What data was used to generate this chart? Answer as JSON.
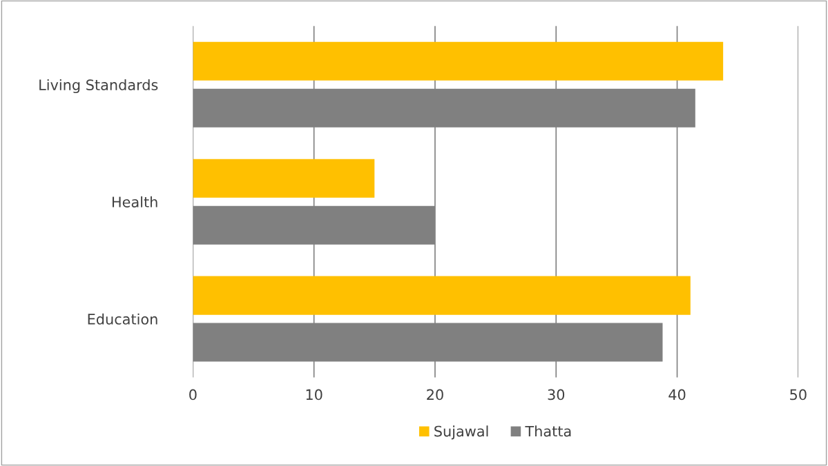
{
  "chart_data": {
    "type": "bar",
    "orientation": "horizontal",
    "categories": [
      "Living Standards",
      "Health",
      "Education"
    ],
    "series": [
      {
        "name": "Sujawal",
        "color": "#ffc000",
        "values": [
          43.8,
          15,
          41.1
        ]
      },
      {
        "name": "Thatta",
        "color": "#808080",
        "values": [
          41.5,
          20,
          38.8
        ]
      }
    ],
    "xlim": [
      0,
      50
    ],
    "xticks": [
      0,
      10,
      20,
      30,
      40,
      50
    ],
    "grid": "x",
    "legend": "bottom"
  }
}
